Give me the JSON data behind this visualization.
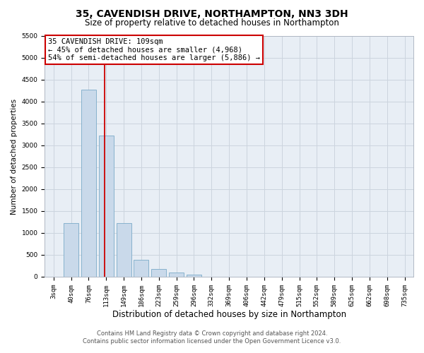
{
  "title_line1": "35, CAVENDISH DRIVE, NORTHAMPTON, NN3 3DH",
  "title_line2": "Size of property relative to detached houses in Northampton",
  "xlabel": "Distribution of detached houses by size in Northampton",
  "ylabel": "Number of detached properties",
  "categories": [
    "3sqm",
    "40sqm",
    "76sqm",
    "113sqm",
    "149sqm",
    "186sqm",
    "223sqm",
    "259sqm",
    "296sqm",
    "332sqm",
    "369sqm",
    "406sqm",
    "442sqm",
    "479sqm",
    "515sqm",
    "552sqm",
    "589sqm",
    "625sqm",
    "662sqm",
    "698sqm",
    "735sqm"
  ],
  "values": [
    0,
    1220,
    4270,
    3220,
    1220,
    390,
    175,
    95,
    50,
    0,
    0,
    0,
    0,
    0,
    0,
    0,
    0,
    0,
    0,
    0,
    0
  ],
  "bar_color": "#c9d9ea",
  "bar_edge_color": "#7aaac8",
  "grid_color": "#ccd4de",
  "background_color": "#e8eef5",
  "vline_x": 2.92,
  "vline_color": "#cc0000",
  "annotation_text_line1": "35 CAVENDISH DRIVE: 109sqm",
  "annotation_text_line2": "← 45% of detached houses are smaller (4,968)",
  "annotation_text_line3": "54% of semi-detached houses are larger (5,886) →",
  "ylim_max": 5500,
  "yticks": [
    0,
    500,
    1000,
    1500,
    2000,
    2500,
    3000,
    3500,
    4000,
    4500,
    5000,
    5500
  ],
  "footer_line1": "Contains HM Land Registry data © Crown copyright and database right 2024.",
  "footer_line2": "Contains public sector information licensed under the Open Government Licence v3.0.",
  "title_fontsize": 10,
  "subtitle_fontsize": 8.5,
  "tick_fontsize": 6.5,
  "ylabel_fontsize": 7.5,
  "xlabel_fontsize": 8.5,
  "footer_fontsize": 6,
  "ann_fontsize": 7.5
}
